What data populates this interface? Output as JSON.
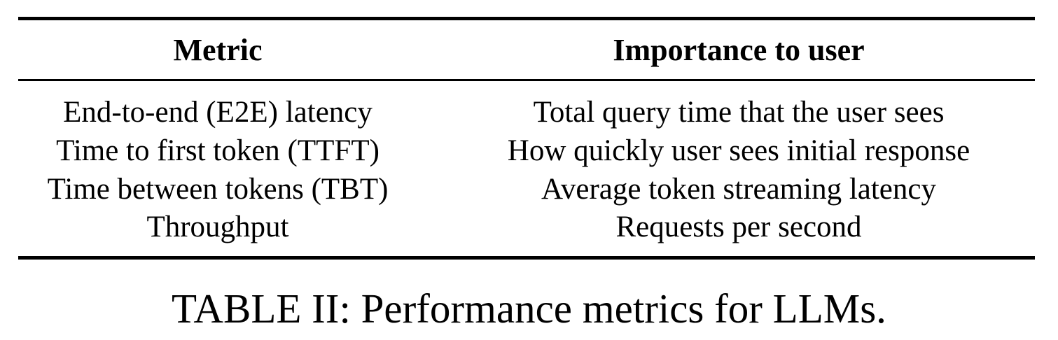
{
  "table": {
    "headers": {
      "metric": "Metric",
      "importance": "Importance to user"
    },
    "rows": [
      {
        "metric": "End-to-end (E2E) latency",
        "importance": "Total query time that the user sees"
      },
      {
        "metric": "Time to first token (TTFT)",
        "importance": "How quickly user sees initial response"
      },
      {
        "metric": "Time between tokens (TBT)",
        "importance": "Average token streaming latency"
      },
      {
        "metric": "Throughput",
        "importance": "Requests per second"
      }
    ]
  },
  "caption": "TABLE II: Performance metrics for LLMs."
}
